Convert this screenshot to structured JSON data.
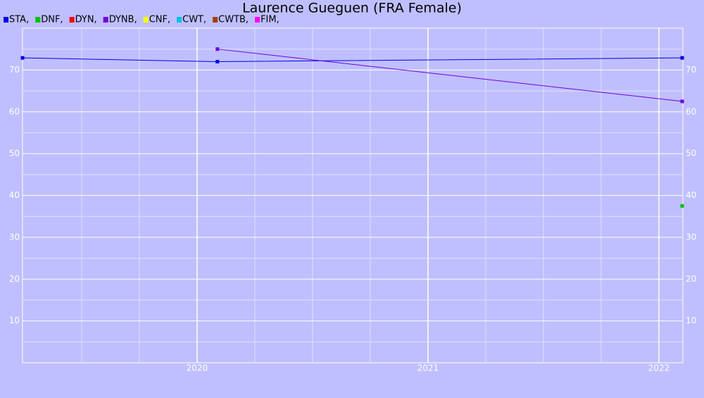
{
  "chart_data": {
    "type": "line",
    "title": "Laurence Gueguen (FRA Female)",
    "xlim": [
      2019.244,
      2022.104
    ],
    "ylim": [
      0,
      80
    ],
    "xticks": [
      2020,
      2021,
      2022
    ],
    "yticks": [
      10,
      20,
      30,
      40,
      50,
      60,
      70
    ],
    "xminorticks": [
      2019.5,
      2019.75,
      2020.25,
      2020.5,
      2020.75,
      2021.25,
      2021.5,
      2021.75
    ],
    "yminorticks": [
      5,
      15,
      25,
      35,
      45,
      55,
      65,
      75
    ],
    "grid": true,
    "series": [
      {
        "name": "STA,",
        "color": "#0000e0",
        "x": [
          2019.244,
          2020.088,
          2022.101
        ],
        "values": [
          72.9,
          72.0,
          72.9
        ]
      },
      {
        "name": "DNF,",
        "color": "#00c000",
        "x": [
          2022.101
        ],
        "values": [
          37.5
        ]
      },
      {
        "name": "DYN,",
        "color": "#ff0000",
        "x": [],
        "values": []
      },
      {
        "name": "DYNB,",
        "color": "#7000e0",
        "x": [
          2020.088,
          2022.101
        ],
        "values": [
          75.0,
          62.5
        ]
      },
      {
        "name": "CNF,",
        "color": "#ffff00",
        "x": [],
        "values": []
      },
      {
        "name": "CWT,",
        "color": "#00c0e0",
        "x": [],
        "values": []
      },
      {
        "name": "CWTB,",
        "color": "#a04000",
        "x": [],
        "values": []
      },
      {
        "name": "FIM,",
        "color": "#ff00ff",
        "x": [],
        "values": []
      }
    ]
  }
}
